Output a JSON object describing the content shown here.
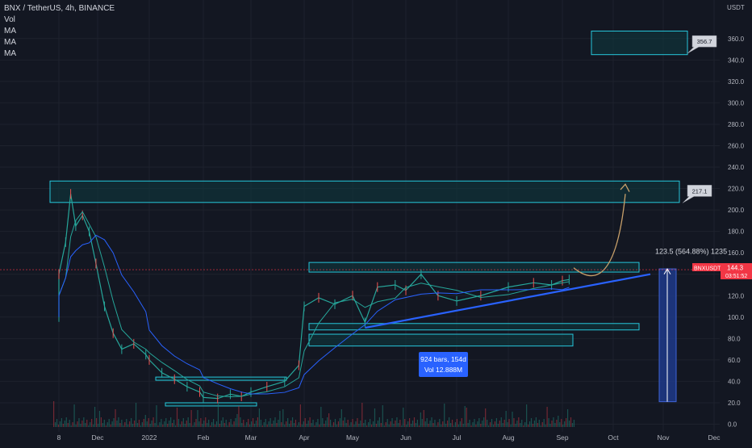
{
  "header": {
    "symbol_line": "BNX / TetherUS, 4h, BINANCE",
    "indicators": [
      "Vol",
      "MA",
      "MA",
      "MA"
    ]
  },
  "chart_data": {
    "type": "line",
    "title": "BNX / TetherUS, 4h, BINANCE",
    "ylabel": "USDT",
    "ylim": [
      0,
      370
    ],
    "y_ticks": [
      "0.0",
      "20.0",
      "40.0",
      "60.0",
      "80.0",
      "100.0",
      "120.0",
      "140.0",
      "160.0",
      "180.0",
      "200.0",
      "220.0",
      "240.0",
      "260.0",
      "280.0",
      "300.0",
      "320.0",
      "340.0",
      "360.0"
    ],
    "x_ticks": [
      "8",
      "Dec",
      "2022",
      "Feb",
      "Mar",
      "Apr",
      "May",
      "Jun",
      "Jul",
      "Aug",
      "Sep",
      "Oct",
      "Nov",
      "Dec"
    ],
    "price_series": {
      "name": "BNXUSDT",
      "points": [
        [
          "8",
          100
        ],
        [
          "8",
          140
        ],
        [
          "Nov-12",
          170
        ],
        [
          "Nov-15",
          215
        ],
        [
          "Nov-18",
          185
        ],
        [
          "Nov-22",
          195
        ],
        [
          "Nov-26",
          180
        ],
        [
          "Nov-30",
          150
        ],
        [
          "Dec-05",
          110
        ],
        [
          "Dec-10",
          85
        ],
        [
          "Dec-15",
          70
        ],
        [
          "Dec-22",
          75
        ],
        [
          "Dec-29",
          65
        ],
        [
          "2022",
          60
        ],
        [
          "Jan-08",
          48
        ],
        [
          "Jan-15",
          42
        ],
        [
          "Jan-22",
          35
        ],
        [
          "Jan-29",
          30
        ],
        [
          "Feb",
          25
        ],
        [
          "Feb-10",
          24
        ],
        [
          "Feb-18",
          28
        ],
        [
          "Feb-25",
          26
        ],
        [
          "Mar",
          30
        ],
        [
          "Mar-10",
          35
        ],
        [
          "Mar-20",
          40
        ],
        [
          "Mar-28",
          55
        ],
        [
          "Apr",
          110
        ],
        [
          "Apr-10",
          118
        ],
        [
          "Apr-20",
          112
        ],
        [
          "May",
          120
        ],
        [
          "May-08",
          95
        ],
        [
          "May-15",
          128
        ],
        [
          "May-25",
          130
        ],
        [
          "Jun",
          125
        ],
        [
          "Jun-10",
          140
        ],
        [
          "Jun-20",
          120
        ],
        [
          "Jul",
          115
        ],
        [
          "Jul-15",
          120
        ],
        [
          "Aug",
          128
        ],
        [
          "Aug-15",
          132
        ],
        [
          "Aug-25",
          130
        ],
        [
          "Sep",
          134
        ],
        [
          "Sep-05",
          135
        ]
      ]
    },
    "projection_label_top": "356.7",
    "projection_label_mid": "217.1",
    "last_price_label": "BNXUSDT",
    "last_price": "144.3",
    "countdown": "03:51:52",
    "measure_label": "123.5 (564.88%) 1235",
    "range_info_bars": "924 bars, 154d",
    "range_info_vol": "Vol 12.888M",
    "colors": {
      "background": "#131722",
      "zone_fill": "#0f3b40",
      "zone_border": "#26c6da",
      "trendline": "#2962ff",
      "projection_arrow": "#c8a06a",
      "measure_fill": "#1e3a8a",
      "ma_fast": "#26a69a",
      "ma_slow": "#2962ff",
      "last_price_bg": "#f23645",
      "info_box": "#2962ff"
    }
  }
}
